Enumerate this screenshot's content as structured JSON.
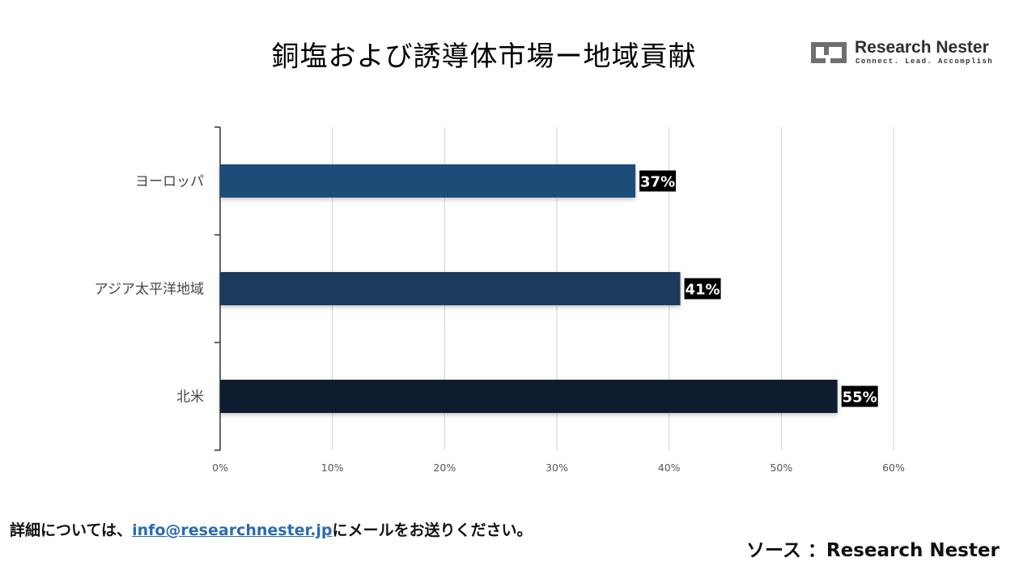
{
  "header": {
    "title": "銅塩および誘導体市場ー地域貢献"
  },
  "logo": {
    "name": "Research Nester",
    "tagline": "Connect. Lead. Accomplish"
  },
  "footer": {
    "contact_prefix": "詳細については、",
    "contact_email": "info@researchnester.jp",
    "contact_suffix": "にメールをお送りください。",
    "source": "ソース ：Research Nester"
  },
  "chart_data": {
    "type": "bar",
    "orientation": "horizontal",
    "title": "銅塩および誘導体市場ー地域貢献",
    "categories": [
      "ヨーロッパ",
      "アジア太平洋地域",
      "北米"
    ],
    "values": [
      37,
      41,
      55
    ],
    "value_labels": [
      "37%",
      "41%",
      "55%"
    ],
    "bar_colors": [
      "#1f4e79",
      "#1b3a5c",
      "#0f1f2e"
    ],
    "xlim": [
      0,
      60
    ],
    "xticks": [
      0,
      10,
      20,
      30,
      40,
      50,
      60
    ],
    "xtick_labels": [
      "0%",
      "10%",
      "20%",
      "30%",
      "40%",
      "50%",
      "60%"
    ],
    "xlabel": "",
    "ylabel": "",
    "grid": "vertical",
    "legend": "none"
  }
}
